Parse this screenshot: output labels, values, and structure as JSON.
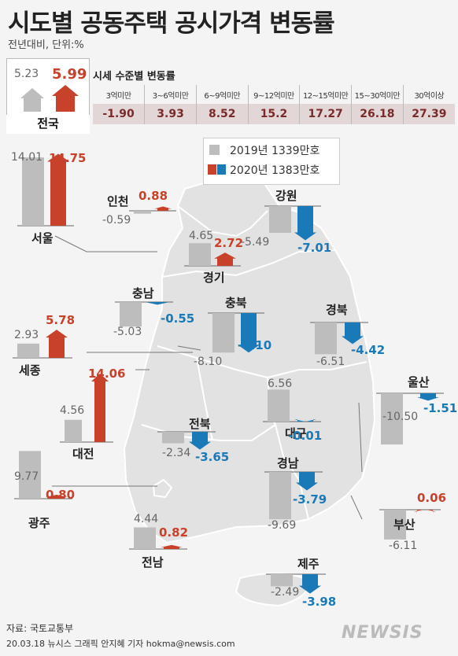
{
  "title": "시도별 공동주택 공시가격 변동률",
  "subtitle": "전년대비, 단위:%",
  "national": {
    "label": "전국",
    "v2019": "5.23",
    "v2020": "5.99"
  },
  "tiers": {
    "title": "시세 수준별 변동률",
    "headers": [
      "3억미만",
      "3~6억미만",
      "6~9억미만",
      "9~12억미만",
      "12~15억미만",
      "15~30억미만",
      "30억이상"
    ],
    "values": [
      "-1.90",
      "3.93",
      "8.52",
      "15.2",
      "17.27",
      "26.18",
      "27.39"
    ]
  },
  "legend": [
    {
      "label": "2019년 1339만호"
    },
    {
      "label": "2020년 1383만호"
    }
  ],
  "colors": {
    "gray": "#bdbdbd",
    "red": "#c8412a",
    "blue": "#1a7ab8",
    "map": "#e2e2e2"
  },
  "chart_data": {
    "type": "bar",
    "categories": [
      "서울",
      "인천",
      "경기",
      "강원",
      "충남",
      "충북",
      "경북",
      "세종",
      "대전",
      "대구",
      "울산",
      "전북",
      "광주",
      "경남",
      "부산",
      "전남",
      "제주"
    ],
    "series": [
      {
        "name": "2019년 1339만호",
        "values": [
          14.01,
          -0.59,
          4.65,
          -5.49,
          -5.03,
          -8.1,
          -6.51,
          2.93,
          4.56,
          6.56,
          -10.5,
          -2.34,
          9.77,
          -9.69,
          -6.11,
          4.44,
          -2.49
        ]
      },
      {
        "name": "2020년 1383만호",
        "values": [
          14.75,
          0.88,
          2.72,
          -7.01,
          -0.55,
          -8.1,
          -4.42,
          5.78,
          14.06,
          -0.01,
          -1.51,
          -3.65,
          0.8,
          -3.79,
          0.06,
          0.82,
          -3.98
        ]
      }
    ],
    "labels": [
      {
        "v2019": "14.01",
        "v2020": "14.75"
      },
      {
        "v2019": "-0.59",
        "v2020": "0.88"
      },
      {
        "v2019": "4.65",
        "v2020": "2.72"
      },
      {
        "v2019": "-5.49",
        "v2020": "-7.01"
      },
      {
        "v2019": "-5.03",
        "v2020": "-0.55"
      },
      {
        "v2019": "-8.10",
        "v2020": "-8.10"
      },
      {
        "v2019": "-6.51",
        "v2020": "-4.42"
      },
      {
        "v2019": "2.93",
        "v2020": "5.78"
      },
      {
        "v2019": "4.56",
        "v2020": "14.06"
      },
      {
        "v2019": "6.56",
        "v2020": "-0.01"
      },
      {
        "v2019": "-10.50",
        "v2020": "-1.51"
      },
      {
        "v2019": "-2.34",
        "v2020": "-3.65"
      },
      {
        "v2019": "9.77",
        "v2020": "0.80"
      },
      {
        "v2019": "-9.69",
        "v2020": "-3.79"
      },
      {
        "v2019": "-6.11",
        "v2020": "0.06"
      },
      {
        "v2019": "4.44",
        "v2020": "0.82"
      },
      {
        "v2019": "-2.49",
        "v2020": "-3.98"
      }
    ]
  },
  "source": "자료: 국토교통부",
  "credit": "20.03.18 뉴시스 그래픽 안지혜 기자 hokma@newsis.com",
  "logo": "NEWSIS"
}
